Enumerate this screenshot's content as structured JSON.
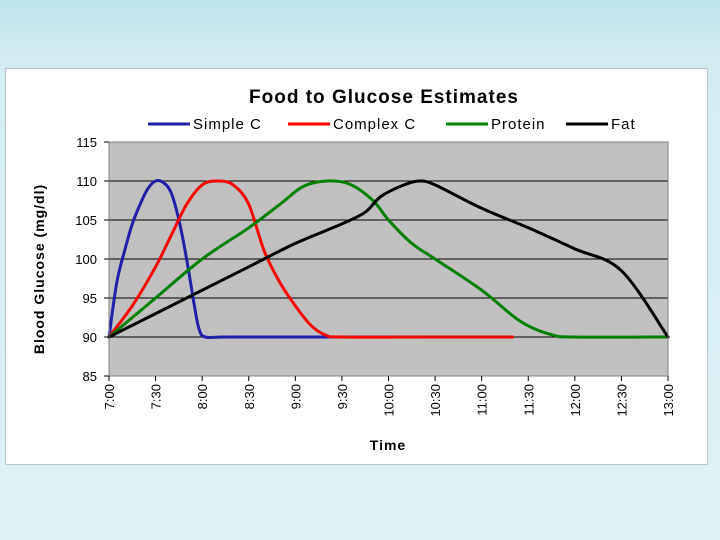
{
  "chart_data": {
    "type": "line",
    "title": "Food to Glucose Estimates",
    "xlabel": "Time",
    "ylabel": "Blood Glucose (mg/dl)",
    "x_ticks": [
      "7:00",
      "7:30",
      "8:00",
      "8:30",
      "9:00",
      "9:30",
      "10:00",
      "10:30",
      "11:00",
      "11:30",
      "12:00",
      "12:30",
      "13:00"
    ],
    "xlim": [
      0,
      360
    ],
    "x_unit": "minutes after 7:00",
    "ylim": [
      85,
      115
    ],
    "y_ticks": [
      85,
      90,
      95,
      100,
      105,
      110,
      115
    ],
    "grid": "horizontal",
    "plot_background": "#c0c0c0",
    "legend_position": "top",
    "series": [
      {
        "name": "Simple C",
        "color": "#1f1fa8",
        "points": [
          [
            0,
            90
          ],
          [
            5,
            97
          ],
          [
            10,
            101
          ],
          [
            15,
            104.5
          ],
          [
            20,
            107
          ],
          [
            25,
            109
          ],
          [
            30,
            110
          ],
          [
            35,
            109.8
          ],
          [
            40,
            108.5
          ],
          [
            45,
            105
          ],
          [
            50,
            100
          ],
          [
            55,
            94
          ],
          [
            58,
            91
          ],
          [
            62,
            90
          ],
          [
            75,
            90
          ],
          [
            120,
            90
          ],
          [
            200,
            90
          ]
        ]
      },
      {
        "name": "Complex C",
        "color": "#ff0000",
        "points": [
          [
            0,
            90
          ],
          [
            15,
            94
          ],
          [
            30,
            99
          ],
          [
            40,
            103
          ],
          [
            50,
            107
          ],
          [
            60,
            109.5
          ],
          [
            70,
            110
          ],
          [
            80,
            109.5
          ],
          [
            90,
            107
          ],
          [
            100,
            101
          ],
          [
            110,
            97
          ],
          [
            120,
            94
          ],
          [
            130,
            91.5
          ],
          [
            140,
            90.2
          ],
          [
            150,
            90
          ],
          [
            200,
            90
          ],
          [
            260,
            90
          ]
        ]
      },
      {
        "name": "Protein",
        "color": "#008000",
        "points": [
          [
            0,
            90
          ],
          [
            30,
            95
          ],
          [
            60,
            100
          ],
          [
            90,
            104
          ],
          [
            110,
            107
          ],
          [
            125,
            109.3
          ],
          [
            140,
            110
          ],
          [
            155,
            109.6
          ],
          [
            170,
            107.5
          ],
          [
            180,
            105
          ],
          [
            195,
            102
          ],
          [
            210,
            100
          ],
          [
            240,
            96
          ],
          [
            265,
            92
          ],
          [
            285,
            90.3
          ],
          [
            300,
            90
          ],
          [
            360,
            90
          ]
        ]
      },
      {
        "name": "Fat",
        "color": "#000000",
        "points": [
          [
            0,
            90
          ],
          [
            30,
            93
          ],
          [
            60,
            96
          ],
          [
            90,
            99
          ],
          [
            120,
            102
          ],
          [
            150,
            104.5
          ],
          [
            165,
            106
          ],
          [
            175,
            108
          ],
          [
            190,
            109.5
          ],
          [
            200,
            110
          ],
          [
            210,
            109.5
          ],
          [
            240,
            106.5
          ],
          [
            270,
            104
          ],
          [
            300,
            101.3
          ],
          [
            330,
            98.5
          ],
          [
            360,
            90
          ]
        ]
      }
    ]
  }
}
